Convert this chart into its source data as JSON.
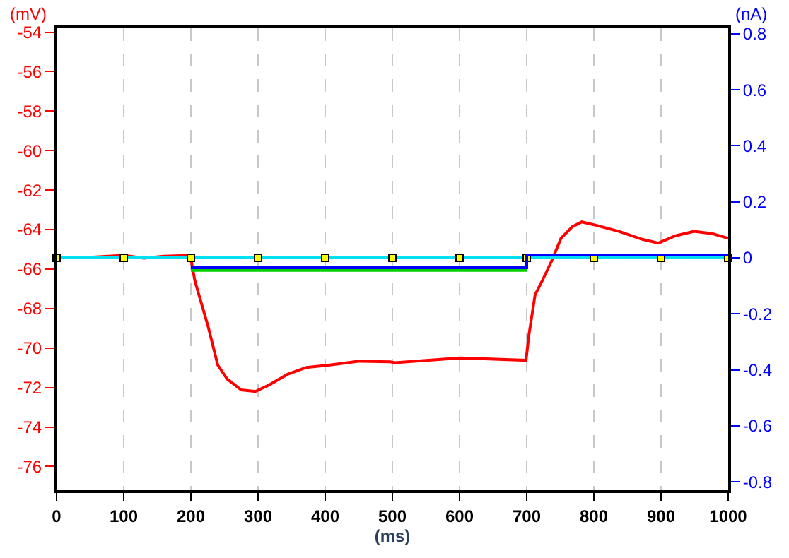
{
  "chart_data": {
    "type": "line",
    "xlabel": "(ms)",
    "ylabel": "(mV)",
    "y2label": "(nA)",
    "xlim": [
      0,
      1000
    ],
    "xticks": [
      0,
      100,
      200,
      300,
      400,
      500,
      600,
      700,
      800,
      900,
      1000
    ],
    "ylim": [
      -77.2,
      -53.8
    ],
    "yticks": [
      -76,
      -74,
      -72,
      -70,
      -68,
      -66,
      -64,
      -62,
      -60,
      -58,
      -56,
      -54
    ],
    "y2lim": [
      -0.83,
      0.82
    ],
    "y2ticks": [
      -0.8,
      -0.6,
      -0.4,
      -0.2,
      0,
      0.2,
      0.4,
      0.6,
      0.8
    ],
    "grid": "x",
    "series": [
      {
        "color": "#00e0f0",
        "axis": "y2",
        "marker": "square",
        "x": [
          0,
          100,
          200,
          300,
          400,
          500,
          600,
          700,
          800,
          900,
          1000
        ],
        "values": [
          0,
          0,
          0,
          0,
          0,
          0,
          0,
          0,
          0,
          0,
          0
        ]
      },
      {
        "color": "#00d000",
        "axis": "y2",
        "x": [
          200,
          700
        ],
        "values": [
          -0.045,
          -0.045
        ]
      },
      {
        "color": "#0000ff",
        "axis": "y2",
        "x": [
          200,
          700,
          700,
          1000
        ],
        "values": [
          -0.035,
          -0.035,
          0.01,
          0.01
        ]
      },
      {
        "color": "#ff0000",
        "x": [
          0,
          50,
          100,
          130,
          160,
          199,
          206,
          226,
          240,
          254,
          275,
          296,
          317,
          344,
          372,
          407,
          449,
          497,
          504,
          601,
          699,
          703,
          712.5,
          723,
          737,
          751,
          768,
          782,
          803,
          837.5,
          872,
          896,
          921,
          949,
          976,
          1000
        ],
        "values": [
          -65.4,
          -65.4,
          -65.3,
          -65.45,
          -65.35,
          -65.3,
          -66.6,
          -68.95,
          -70.86,
          -71.57,
          -72.12,
          -72.2,
          -71.86,
          -71.33,
          -70.98,
          -70.86,
          -70.67,
          -70.7,
          -70.74,
          -70.5,
          -70.62,
          -69.4,
          -67.3,
          -66.6,
          -65.6,
          -64.44,
          -63.85,
          -63.61,
          -63.78,
          -64.09,
          -64.49,
          -64.68,
          -64.32,
          -64.09,
          -64.2,
          -64.44
        ]
      }
    ]
  }
}
